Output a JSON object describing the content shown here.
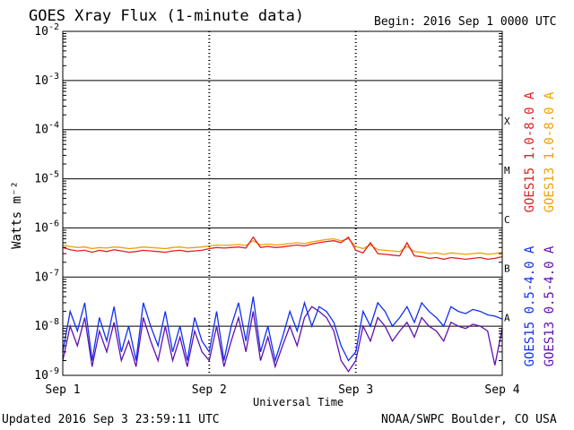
{
  "header": {
    "title": "GOES Xray Flux (1-minute data)",
    "begin": "Begin:  2016 Sep 1 0000 UTC"
  },
  "footer": {
    "updated": "Updated 2016 Sep  3 23:59:11 UTC",
    "source": "NOAA/SWPC Boulder, CO USA"
  },
  "colors": {
    "goes15_long": "#e02020",
    "goes13_long": "#f0a000",
    "goes15_short": "#1030f0",
    "goes13_short": "#6010b0",
    "axis": "#000000"
  },
  "chart_data": {
    "type": "line",
    "title": "GOES Xray Flux (1-minute data)",
    "xlabel": "Universal Time",
    "ylabel": "Watts m⁻²",
    "yscale": "log",
    "ylim": [
      1e-09,
      0.01
    ],
    "xlim": [
      0,
      3
    ],
    "grid": true,
    "x_tick_labels": [
      "Sep 1",
      "Sep 2",
      "Sep 3",
      "Sep 4"
    ],
    "y_tick_labels": [
      {
        "base": "10",
        "exp": "-2",
        "value": 0.01
      },
      {
        "base": "10",
        "exp": "-3",
        "value": 0.001
      },
      {
        "base": "10",
        "exp": "-4",
        "value": 0.0001
      },
      {
        "base": "10",
        "exp": "-5",
        "value": 1e-05
      },
      {
        "base": "10",
        "exp": "-6",
        "value": 1e-06
      },
      {
        "base": "10",
        "exp": "-7",
        "value": 1e-07
      },
      {
        "base": "10",
        "exp": "-8",
        "value": 1e-08
      },
      {
        "base": "10",
        "exp": "-9",
        "value": 1e-09
      }
    ],
    "flare_classes": [
      {
        "label": "X",
        "value": 0.0001
      },
      {
        "label": "M",
        "value": 1e-05
      },
      {
        "label": "C",
        "value": 1e-06
      },
      {
        "label": "B",
        "value": 1e-07
      },
      {
        "label": "A",
        "value": 1e-08
      }
    ],
    "legend_placement": "right",
    "series": [
      {
        "name": "GOES15 1.0-8.0 A",
        "x": [
          0,
          0.05,
          0.1,
          0.15,
          0.2,
          0.25,
          0.3,
          0.35,
          0.4,
          0.45,
          0.5,
          0.55,
          0.6,
          0.65,
          0.7,
          0.75,
          0.8,
          0.85,
          0.9,
          0.95,
          1.0,
          1.05,
          1.1,
          1.15,
          1.2,
          1.25,
          1.3,
          1.35,
          1.4,
          1.45,
          1.5,
          1.55,
          1.6,
          1.65,
          1.7,
          1.75,
          1.8,
          1.85,
          1.9,
          1.95,
          2.0,
          2.05,
          2.1,
          2.15,
          2.2,
          2.25,
          2.3,
          2.35,
          2.4,
          2.45,
          2.5,
          2.55,
          2.6,
          2.65,
          2.7,
          2.75,
          2.8,
          2.85,
          2.9,
          2.95,
          3.0
        ],
        "values": [
          4e-07,
          3.6e-07,
          3.4e-07,
          3.5e-07,
          3.2e-07,
          3.5e-07,
          3.3e-07,
          3.6e-07,
          3.4e-07,
          3.2e-07,
          3.3e-07,
          3.5e-07,
          3.4e-07,
          3.3e-07,
          3.2e-07,
          3.4e-07,
          3.5e-07,
          3.3e-07,
          3.4e-07,
          3.5e-07,
          3.8e-07,
          4e-07,
          3.9e-07,
          4e-07,
          4.1e-07,
          3.9e-07,
          6.5e-07,
          4e-07,
          4.2e-07,
          4e-07,
          4.1e-07,
          4.3e-07,
          4.5e-07,
          4.3e-07,
          4.7e-07,
          5e-07,
          5.3e-07,
          5.5e-07,
          5e-07,
          6.5e-07,
          3.5e-07,
          3.1e-07,
          5e-07,
          3e-07,
          2.9e-07,
          2.8e-07,
          2.7e-07,
          5e-07,
          2.7e-07,
          2.6e-07,
          2.4e-07,
          2.5e-07,
          2.3e-07,
          2.5e-07,
          2.4e-07,
          2.3e-07,
          2.4e-07,
          2.5e-07,
          2.3e-07,
          2.4e-07,
          2.6e-07
        ]
      },
      {
        "name": "GOES13 1.0-8.0 A",
        "x": [
          0,
          0.05,
          0.1,
          0.15,
          0.2,
          0.25,
          0.3,
          0.35,
          0.4,
          0.45,
          0.5,
          0.55,
          0.6,
          0.65,
          0.7,
          0.75,
          0.8,
          0.85,
          0.9,
          0.95,
          1.0,
          1.05,
          1.1,
          1.15,
          1.2,
          1.25,
          1.3,
          1.35,
          1.4,
          1.45,
          1.5,
          1.55,
          1.6,
          1.65,
          1.7,
          1.75,
          1.8,
          1.85,
          1.9,
          1.95,
          2.0,
          2.05,
          2.1,
          2.15,
          2.2,
          2.25,
          2.3,
          2.35,
          2.4,
          2.45,
          2.5,
          2.55,
          2.6,
          2.65,
          2.7,
          2.75,
          2.8,
          2.85,
          2.9,
          2.95,
          3.0
        ],
        "values": [
          4.5e-07,
          4.2e-07,
          4e-07,
          4.1e-07,
          3.8e-07,
          4e-07,
          3.9e-07,
          4.1e-07,
          4e-07,
          3.8e-07,
          3.9e-07,
          4.1e-07,
          4e-07,
          3.9e-07,
          3.8e-07,
          4e-07,
          4.1e-07,
          3.9e-07,
          4e-07,
          4.1e-07,
          4.3e-07,
          4.5e-07,
          4.4e-07,
          4.5e-07,
          4.6e-07,
          4.4e-07,
          5.5e-07,
          4.5e-07,
          4.7e-07,
          4.5e-07,
          4.6e-07,
          4.8e-07,
          5e-07,
          4.8e-07,
          5.2e-07,
          5.5e-07,
          5.8e-07,
          6e-07,
          5.5e-07,
          6e-07,
          4.2e-07,
          3.8e-07,
          4.5e-07,
          3.6e-07,
          3.5e-07,
          3.4e-07,
          3.3e-07,
          4.2e-07,
          3.3e-07,
          3.2e-07,
          3e-07,
          3.1e-07,
          2.9e-07,
          3.1e-07,
          3e-07,
          2.9e-07,
          3e-07,
          3.1e-07,
          2.9e-07,
          3e-07,
          3.2e-07
        ]
      },
      {
        "name": "GOES15 0.5-4.0 A",
        "x": [
          0,
          0.05,
          0.1,
          0.15,
          0.2,
          0.25,
          0.3,
          0.35,
          0.4,
          0.45,
          0.5,
          0.55,
          0.6,
          0.65,
          0.7,
          0.75,
          0.8,
          0.85,
          0.9,
          0.95,
          1.0,
          1.05,
          1.1,
          1.15,
          1.2,
          1.25,
          1.3,
          1.35,
          1.4,
          1.45,
          1.5,
          1.55,
          1.6,
          1.65,
          1.7,
          1.75,
          1.8,
          1.85,
          1.9,
          1.95,
          2.0,
          2.05,
          2.1,
          2.15,
          2.2,
          2.25,
          2.3,
          2.35,
          2.4,
          2.45,
          2.5,
          2.55,
          2.6,
          2.65,
          2.7,
          2.75,
          2.8,
          2.85,
          2.9,
          2.95,
          3.0
        ],
        "values": [
          3e-09,
          2e-08,
          8e-09,
          3e-08,
          2e-09,
          1.5e-08,
          5e-09,
          2.5e-08,
          3e-09,
          1e-08,
          2e-09,
          3e-08,
          1e-08,
          4e-09,
          2e-08,
          3e-09,
          1e-08,
          2e-09,
          1.5e-08,
          5e-09,
          3e-09,
          2e-08,
          2e-09,
          1e-08,
          3e-08,
          5e-09,
          4e-08,
          3e-09,
          1e-08,
          2e-09,
          6e-09,
          2e-08,
          8e-09,
          3e-08,
          1e-08,
          2.5e-08,
          2e-08,
          1.2e-08,
          4e-09,
          2e-09,
          3e-09,
          2e-08,
          1e-08,
          3e-08,
          2e-08,
          1e-08,
          1.5e-08,
          2.5e-08,
          1.2e-08,
          3e-08,
          2e-08,
          1.5e-08,
          1e-08,
          2.5e-08,
          2e-08,
          1.8e-08,
          2.2e-08,
          2e-08,
          1.7e-08,
          1.6e-08,
          1.4e-08
        ]
      },
      {
        "name": "GOES13 0.5-4.0 A",
        "x": [
          0,
          0.05,
          0.1,
          0.15,
          0.2,
          0.25,
          0.3,
          0.35,
          0.4,
          0.45,
          0.5,
          0.55,
          0.6,
          0.65,
          0.7,
          0.75,
          0.8,
          0.85,
          0.9,
          0.95,
          1.0,
          1.05,
          1.1,
          1.15,
          1.2,
          1.25,
          1.3,
          1.35,
          1.4,
          1.45,
          1.5,
          1.55,
          1.6,
          1.65,
          1.7,
          1.75,
          1.8,
          1.85,
          1.9,
          1.95,
          2.0,
          2.05,
          2.1,
          2.15,
          2.2,
          2.25,
          2.3,
          2.35,
          2.4,
          2.45,
          2.5,
          2.55,
          2.6,
          2.65,
          2.7,
          2.75,
          2.8,
          2.85,
          2.9,
          2.95,
          3.0
        ],
        "values": [
          2e-09,
          1e-08,
          4e-09,
          1.5e-08,
          1.5e-09,
          8e-09,
          3e-09,
          1.2e-08,
          2e-09,
          5e-09,
          1.5e-09,
          1.5e-08,
          5e-09,
          2e-09,
          1e-08,
          2e-09,
          6e-09,
          1.5e-09,
          8e-09,
          3e-09,
          2e-09,
          1e-08,
          1.5e-09,
          5e-09,
          1.5e-08,
          3e-09,
          2e-08,
          2e-09,
          6e-09,
          1.5e-09,
          4e-09,
          1e-08,
          4e-09,
          1.5e-08,
          2.5e-08,
          2e-08,
          1.5e-08,
          8e-09,
          2e-09,
          1.2e-09,
          2e-09,
          1e-08,
          5e-09,
          1.5e-08,
          1e-08,
          5e-09,
          8e-09,
          1.2e-08,
          6e-09,
          1.5e-08,
          1e-08,
          8e-09,
          5e-09,
          1.2e-08,
          1e-08,
          9e-09,
          1.1e-08,
          1e-08,
          8e-09,
          1.6e-09,
          9e-09
        ]
      }
    ]
  }
}
